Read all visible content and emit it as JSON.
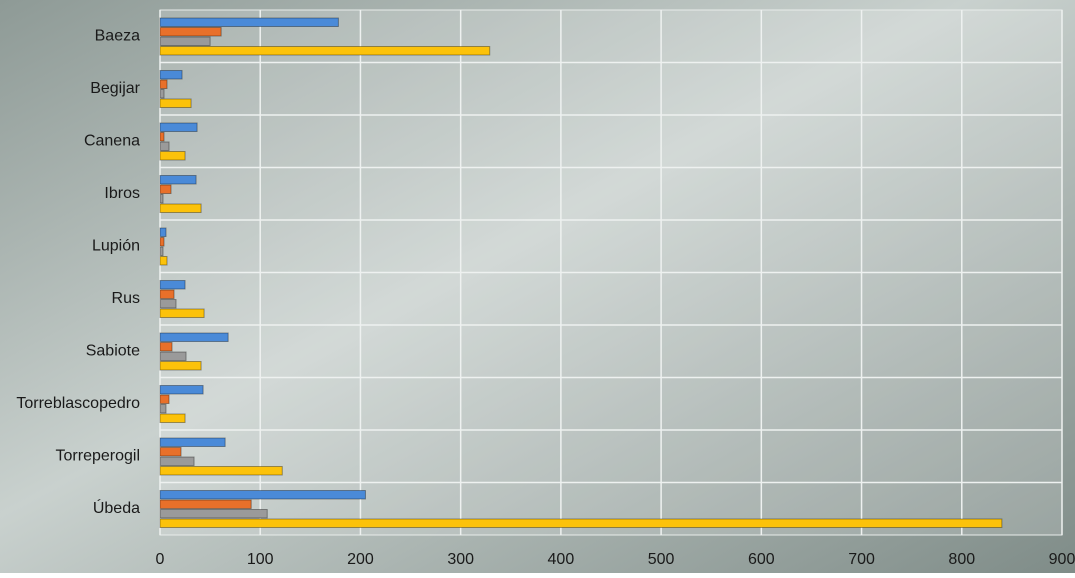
{
  "chart_data": {
    "type": "bar",
    "orientation": "horizontal",
    "categories": [
      "Baeza",
      "Begijar",
      "Canena",
      "Ibros",
      "Lupión",
      "Rus",
      "Sabiote",
      "Torreblascopedro",
      "Torreperogil",
      "Úbeda"
    ],
    "series": [
      {
        "color": "#4a8ad8",
        "values": [
          178,
          22,
          37,
          36,
          6,
          25,
          68,
          43,
          65,
          205
        ]
      },
      {
        "color": "#e8702a",
        "values": [
          61,
          7,
          4,
          11,
          4,
          14,
          12,
          9,
          21,
          91
        ]
      },
      {
        "color": "#9a9a9a",
        "values": [
          50,
          4,
          9,
          3,
          3,
          16,
          26,
          6,
          34,
          107
        ]
      },
      {
        "color": "#fcc20a",
        "values": [
          329,
          31,
          25,
          41,
          7,
          44,
          41,
          25,
          122,
          840
        ]
      }
    ],
    "xlim": [
      0,
      900
    ],
    "xticks": [
      0,
      100,
      200,
      300,
      400,
      500,
      600,
      700,
      800,
      900
    ],
    "grid": true
  }
}
